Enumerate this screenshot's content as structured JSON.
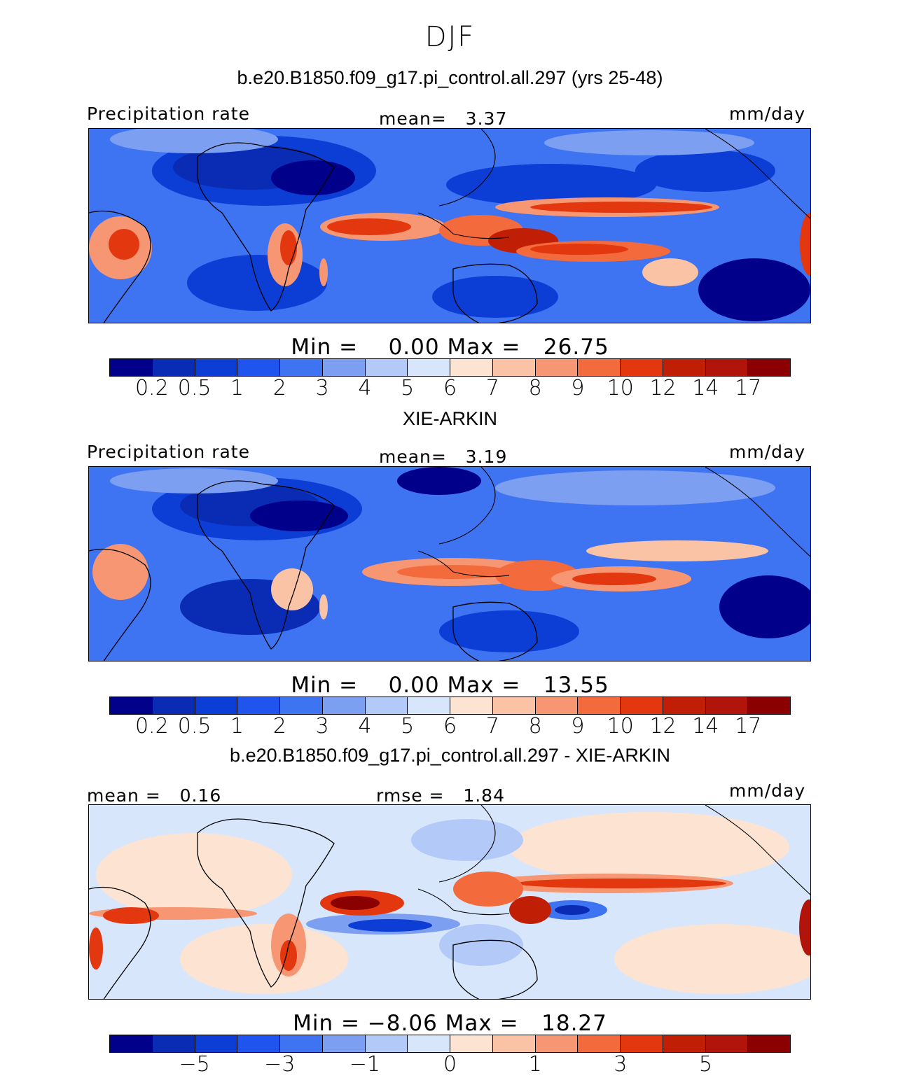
{
  "season": "DJF",
  "panels": [
    {
      "title": "b.e20.B1850.f09_g17.pi_control.all.297 (yrs 25-48)",
      "left_label": "Precipitation rate",
      "center_label": "mean=   3.37",
      "right_label": "mm/day",
      "min_max": "Min =    0.00 Max =   26.75",
      "field_range_mm_day": [
        0.0,
        26.75
      ],
      "field_mean_mm_day": 3.37
    },
    {
      "title": "XIE-ARKIN",
      "left_label": "Precipitation rate",
      "center_label": "mean=   3.19",
      "right_label": "mm/day",
      "min_max": "Min =    0.00 Max =   13.55",
      "field_range_mm_day": [
        0.0,
        13.55
      ],
      "field_mean_mm_day": 3.19
    },
    {
      "title": "b.e20.B1850.f09_g17.pi_control.all.297 - XIE-ARKIN",
      "left_label": "mean =   0.16",
      "center_label": "rmse =   1.84",
      "right_label": "mm/day",
      "min_max": "Min = −8.06 Max =   18.27",
      "field_range_mm_day": [
        -8.06,
        18.27
      ],
      "field_mean_mm_day": 0.16,
      "field_rmse_mm_day": 1.84
    }
  ],
  "colorbar_colors": [
    "#00008a",
    "#0a2cb5",
    "#0c3ed6",
    "#1f55ee",
    "#3e73f2",
    "#7d9ff2",
    "#b3c9f7",
    "#d7e6fb",
    "#fde4d2",
    "#fbc3a6",
    "#f69672",
    "#f36a3c",
    "#e3380f",
    "#c01f05",
    "#b1140a",
    "#8b0000"
  ],
  "abs_ticks": [
    "0.2",
    "0.5",
    "1",
    "2",
    "3",
    "4",
    "5",
    "6",
    "7",
    "8",
    "9",
    "10",
    "12",
    "14",
    "17"
  ],
  "diff_ticks": [
    "−5",
    "−3",
    "−1",
    "0",
    "1",
    "3",
    "5"
  ]
}
